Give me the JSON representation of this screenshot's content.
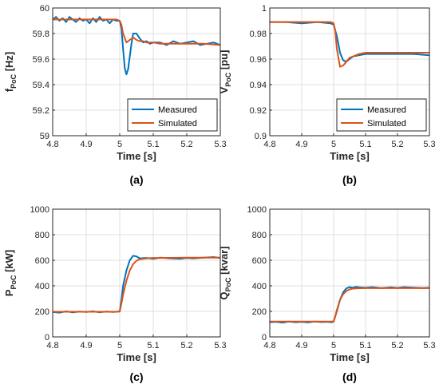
{
  "figure": {
    "colors": {
      "measured": "#0072BD",
      "simulated": "#D95319",
      "grid": "#DFDFDF",
      "axis": "#262626"
    }
  },
  "chart_data": [
    {
      "type": "line",
      "panel_label": "(a)",
      "xlabel": "Time [s]",
      "ylabel": {
        "main": "f",
        "sub": "PoC",
        "unit": " [Hz]"
      },
      "xlim": [
        4.8,
        5.3
      ],
      "ylim": [
        59,
        60
      ],
      "xticks": [
        "4.8",
        "4.9",
        "5",
        "5.1",
        "5.2",
        "5.3"
      ],
      "yticks": [
        "59",
        "59.2",
        "59.4",
        "59.6",
        "59.8",
        "60"
      ],
      "grid": true,
      "legend": {
        "position": "bottom-right",
        "entries": [
          "Measured",
          "Simulated"
        ]
      },
      "series": [
        {
          "name": "Measured",
          "color": "#0072BD",
          "x": [
            4.8,
            4.81,
            4.82,
            4.83,
            4.84,
            4.85,
            4.86,
            4.87,
            4.88,
            4.89,
            4.9,
            4.91,
            4.92,
            4.93,
            4.94,
            4.95,
            4.96,
            4.97,
            4.98,
            4.99,
            5.0,
            5.005,
            5.01,
            5.015,
            5.02,
            5.025,
            5.03,
            5.035,
            5.04,
            5.05,
            5.06,
            5.07,
            5.08,
            5.09,
            5.1,
            5.12,
            5.14,
            5.16,
            5.18,
            5.2,
            5.22,
            5.24,
            5.26,
            5.28,
            5.3
          ],
          "y": [
            59.91,
            59.93,
            59.9,
            59.92,
            59.89,
            59.93,
            59.91,
            59.89,
            59.92,
            59.9,
            59.91,
            59.88,
            59.92,
            59.89,
            59.93,
            59.9,
            59.91,
            59.88,
            59.91,
            59.9,
            59.9,
            59.84,
            59.68,
            59.53,
            59.48,
            59.52,
            59.62,
            59.72,
            59.8,
            59.8,
            59.76,
            59.73,
            59.74,
            59.72,
            59.73,
            59.73,
            59.71,
            59.74,
            59.72,
            59.73,
            59.74,
            59.71,
            59.72,
            59.73,
            59.71
          ]
        },
        {
          "name": "Simulated",
          "color": "#D95319",
          "x": [
            4.8,
            4.85,
            4.9,
            4.95,
            4.99,
            5.0,
            5.005,
            5.01,
            5.02,
            5.03,
            5.04,
            5.05,
            5.06,
            5.07,
            5.08,
            5.1,
            5.12,
            5.15,
            5.2,
            5.25,
            5.3
          ],
          "y": [
            59.91,
            59.91,
            59.91,
            59.91,
            59.91,
            59.9,
            59.87,
            59.8,
            59.73,
            59.75,
            59.77,
            59.75,
            59.74,
            59.74,
            59.73,
            59.73,
            59.72,
            59.72,
            59.72,
            59.72,
            59.71
          ]
        }
      ]
    },
    {
      "type": "line",
      "panel_label": "(b)",
      "xlabel": "Time [s]",
      "ylabel": {
        "main": "V",
        "sub": "PoC",
        "unit": " [pu]"
      },
      "xlim": [
        4.8,
        5.3
      ],
      "ylim": [
        0.9,
        1.0
      ],
      "xticks": [
        "4.8",
        "4.9",
        "5",
        "5.1",
        "5.2",
        "5.3"
      ],
      "yticks": [
        "0.9",
        "0.92",
        "0.94",
        "0.96",
        "0.98",
        "1"
      ],
      "grid": true,
      "legend": {
        "position": "bottom-right",
        "entries": [
          "Measured",
          "Simulated"
        ]
      },
      "series": [
        {
          "name": "Measured",
          "color": "#0072BD",
          "x": [
            4.8,
            4.85,
            4.9,
            4.95,
            4.99,
            5.0,
            5.01,
            5.02,
            5.03,
            5.04,
            5.05,
            5.06,
            5.08,
            5.1,
            5.15,
            5.2,
            5.25,
            5.3
          ],
          "y": [
            0.989,
            0.989,
            0.988,
            0.989,
            0.988,
            0.987,
            0.978,
            0.965,
            0.959,
            0.958,
            0.96,
            0.962,
            0.963,
            0.964,
            0.964,
            0.964,
            0.964,
            0.963
          ]
        },
        {
          "name": "Simulated",
          "color": "#D95319",
          "x": [
            4.8,
            4.85,
            4.9,
            4.95,
            4.99,
            5.0,
            5.005,
            5.01,
            5.02,
            5.03,
            5.04,
            5.05,
            5.06,
            5.08,
            5.1,
            5.15,
            5.2,
            5.25,
            5.3
          ],
          "y": [
            0.989,
            0.989,
            0.989,
            0.989,
            0.989,
            0.988,
            0.982,
            0.968,
            0.954,
            0.955,
            0.958,
            0.961,
            0.962,
            0.964,
            0.965,
            0.965,
            0.965,
            0.965,
            0.965
          ]
        }
      ]
    },
    {
      "type": "line",
      "panel_label": "(c)",
      "xlabel": "Time [s]",
      "ylabel": {
        "main": "P",
        "sub": "PoC",
        "unit": " [kW]"
      },
      "xlim": [
        4.8,
        5.3
      ],
      "ylim": [
        0,
        1000
      ],
      "xticks": [
        "4.8",
        "4.9",
        "5",
        "5.1",
        "5.2",
        "5.3"
      ],
      "yticks": [
        "0",
        "200",
        "400",
        "600",
        "800",
        "1000"
      ],
      "grid": true,
      "legend": null,
      "series": [
        {
          "name": "Measured",
          "color": "#0072BD",
          "x": [
            4.8,
            4.82,
            4.84,
            4.86,
            4.88,
            4.9,
            4.92,
            4.94,
            4.96,
            4.98,
            4.995,
            5.0,
            5.005,
            5.01,
            5.02,
            5.03,
            5.04,
            5.05,
            5.06,
            5.08,
            5.1,
            5.12,
            5.15,
            5.18,
            5.2,
            5.22,
            5.25,
            5.28,
            5.3
          ],
          "y": [
            195,
            190,
            200,
            192,
            198,
            195,
            200,
            193,
            198,
            195,
            198,
            200,
            290,
            400,
            520,
            600,
            635,
            630,
            615,
            618,
            612,
            620,
            615,
            612,
            618,
            615,
            620,
            625,
            618
          ]
        },
        {
          "name": "Simulated",
          "color": "#D95319",
          "x": [
            4.8,
            4.85,
            4.9,
            4.95,
            4.99,
            5.0,
            5.005,
            5.01,
            5.02,
            5.03,
            5.04,
            5.05,
            5.06,
            5.08,
            5.1,
            5.15,
            5.2,
            5.25,
            5.3
          ],
          "y": [
            197,
            197,
            197,
            197,
            197,
            198,
            260,
            330,
            440,
            520,
            570,
            596,
            608,
            615,
            618,
            619,
            620,
            620,
            620
          ]
        }
      ]
    },
    {
      "type": "line",
      "panel_label": "(d)",
      "xlabel": "Time [s]",
      "ylabel": {
        "main": "Q",
        "sub": "PoC",
        "unit": " [kvar]"
      },
      "xlim": [
        4.8,
        5.3
      ],
      "ylim": [
        0,
        1000
      ],
      "xticks": [
        "4.8",
        "4.9",
        "5",
        "5.1",
        "5.2",
        "5.3"
      ],
      "yticks": [
        "0",
        "200",
        "400",
        "600",
        "800",
        "1000"
      ],
      "grid": true,
      "legend": null,
      "series": [
        {
          "name": "Measured",
          "color": "#0072BD",
          "x": [
            4.8,
            4.82,
            4.84,
            4.86,
            4.88,
            4.9,
            4.92,
            4.94,
            4.96,
            4.98,
            4.995,
            5.0,
            5.01,
            5.02,
            5.03,
            5.04,
            5.05,
            5.06,
            5.07,
            5.08,
            5.1,
            5.12,
            5.15,
            5.18,
            5.2,
            5.22,
            5.25,
            5.28,
            5.3
          ],
          "y": [
            115,
            118,
            112,
            120,
            115,
            118,
            113,
            120,
            116,
            118,
            115,
            120,
            200,
            290,
            350,
            380,
            390,
            385,
            392,
            388,
            385,
            390,
            382,
            388,
            384,
            390,
            386,
            383,
            385
          ]
        },
        {
          "name": "Simulated",
          "color": "#D95319",
          "x": [
            4.8,
            4.85,
            4.9,
            4.95,
            4.99,
            5.0,
            5.005,
            5.01,
            5.02,
            5.03,
            5.04,
            5.05,
            5.06,
            5.08,
            5.1,
            5.15,
            5.2,
            5.25,
            5.3
          ],
          "y": [
            120,
            120,
            120,
            120,
            120,
            122,
            160,
            210,
            290,
            335,
            360,
            372,
            378,
            381,
            382,
            382,
            382,
            382,
            382
          ]
        }
      ]
    }
  ]
}
